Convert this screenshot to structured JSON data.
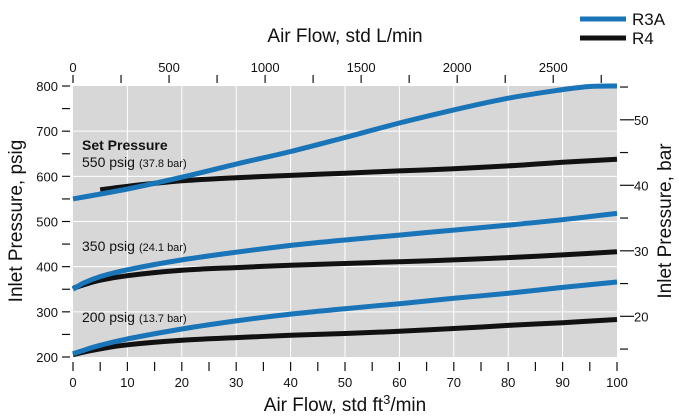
{
  "chart_data": {
    "type": "line",
    "x_bottom": {
      "label": "Air Flow, std ft",
      "label_sup": "3",
      "label_suffix": "/min",
      "range": [
        0,
        100
      ],
      "ticks": [
        "0",
        "10",
        "20",
        "30",
        "40",
        "50",
        "60",
        "70",
        "80",
        "90",
        "100"
      ]
    },
    "x_top": {
      "label": "Air Flow, std L/min",
      "range": [
        0,
        2832
      ],
      "ticks": [
        "0",
        "500",
        "1000",
        "1500",
        "2000",
        "2500"
      ]
    },
    "y_left": {
      "label": "Inlet Pressure, psig",
      "range": [
        200,
        800
      ],
      "ticks": [
        "200",
        "300",
        "400",
        "500",
        "600",
        "700",
        "800"
      ]
    },
    "y_right": {
      "label": "Inlet Pressure, bar",
      "ticks": [
        "20",
        "30",
        "40",
        "50"
      ]
    },
    "annotations": {
      "heading": "Set Pressure",
      "groups": [
        {
          "psig": "550 psig",
          "bar": "(37.8 bar)"
        },
        {
          "psig": "350 psig",
          "bar": "(24.1 bar)"
        },
        {
          "psig": "200 psig",
          "bar": "(13.7 bar)"
        }
      ]
    },
    "legend": [
      {
        "name": "R3A",
        "color": "#1a74b8"
      },
      {
        "name": "R4",
        "color": "#111111"
      }
    ],
    "series": [
      {
        "name": "R3A",
        "set_pressure_psig": 550,
        "color": "#1a74b8",
        "x": [
          0,
          10,
          20,
          30,
          40,
          50,
          60,
          70,
          80,
          90,
          95,
          100
        ],
        "y": [
          550,
          572,
          598,
          627,
          655,
          686,
          718,
          747,
          773,
          792,
          799,
          800
        ]
      },
      {
        "name": "R4",
        "set_pressure_psig": 550,
        "color": "#111111",
        "x": [
          5,
          10,
          20,
          30,
          40,
          50,
          60,
          70,
          80,
          90,
          100
        ],
        "y": [
          570,
          578,
          590,
          597,
          602,
          607,
          612,
          617,
          623,
          631,
          638
        ]
      },
      {
        "name": "R3A",
        "set_pressure_psig": 350,
        "color": "#1a74b8",
        "x": [
          0,
          2,
          5,
          10,
          20,
          30,
          40,
          50,
          60,
          70,
          80,
          90,
          100
        ],
        "y": [
          350,
          364,
          378,
          393,
          415,
          432,
          447,
          459,
          470,
          481,
          492,
          504,
          518
        ]
      },
      {
        "name": "R4",
        "set_pressure_psig": 350,
        "color": "#111111",
        "x": [
          0,
          2,
          5,
          10,
          20,
          30,
          40,
          50,
          60,
          70,
          80,
          90,
          100
        ],
        "y": [
          352,
          360,
          370,
          380,
          392,
          398,
          403,
          407,
          411,
          415,
          420,
          426,
          433
        ]
      },
      {
        "name": "R3A",
        "set_pressure_psig": 200,
        "color": "#1a74b8",
        "x": [
          0,
          2,
          5,
          10,
          20,
          30,
          40,
          50,
          60,
          70,
          80,
          90,
          100
        ],
        "y": [
          207,
          215,
          226,
          240,
          262,
          280,
          295,
          307,
          318,
          330,
          341,
          354,
          366
        ]
      },
      {
        "name": "R4",
        "set_pressure_psig": 200,
        "color": "#111111",
        "x": [
          0,
          2,
          5,
          10,
          20,
          30,
          40,
          50,
          60,
          70,
          80,
          90,
          100
        ],
        "y": [
          205,
          211,
          218,
          227,
          237,
          243,
          248,
          252,
          257,
          263,
          270,
          276,
          283
        ]
      }
    ]
  }
}
